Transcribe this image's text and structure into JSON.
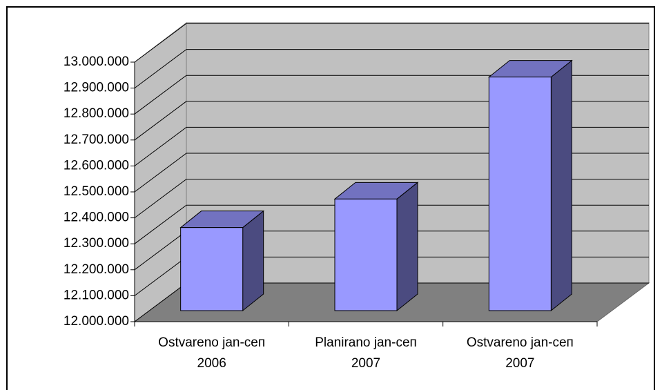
{
  "chart_data": {
    "type": "bar3d",
    "categories": [
      "Ostvareno jan-сеп 2006",
      "Planirano jan-сеп 2007",
      "Ostvareno jan-сеп 2007"
    ],
    "values": [
      12320000,
      12430000,
      12900000
    ],
    "color": "#9999ff",
    "ylim": [
      12000000,
      13000000
    ],
    "yticks": [
      {
        "value": 12000000,
        "label": "12.000.000"
      },
      {
        "value": 12100000,
        "label": "12.100.000"
      },
      {
        "value": 12200000,
        "label": "12.200.000"
      },
      {
        "value": 12300000,
        "label": "12.300.000"
      },
      {
        "value": 12400000,
        "label": "12.400.000"
      },
      {
        "value": 12500000,
        "label": "12.500.000"
      },
      {
        "value": 12600000,
        "label": "12.600.000"
      },
      {
        "value": 12700000,
        "label": "12.700.000"
      },
      {
        "value": 12800000,
        "label": "12.800.000"
      },
      {
        "value": 12900000,
        "label": "12.900.000"
      },
      {
        "value": 13000000,
        "label": "13.000.000"
      }
    ],
    "grid": true
  }
}
